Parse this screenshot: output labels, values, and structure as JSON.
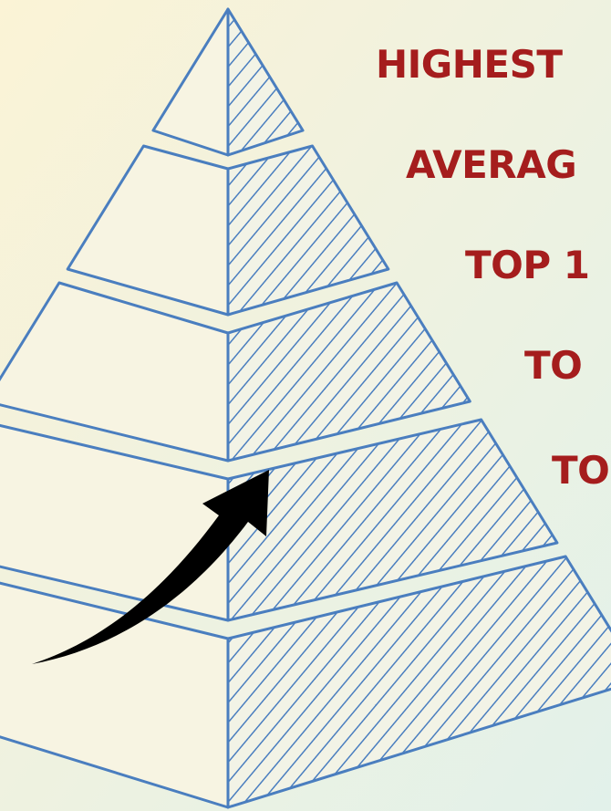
{
  "labels": [
    "HIGHEST",
    "AVERAG",
    "TOP 1",
    "TO",
    "TO"
  ]
}
